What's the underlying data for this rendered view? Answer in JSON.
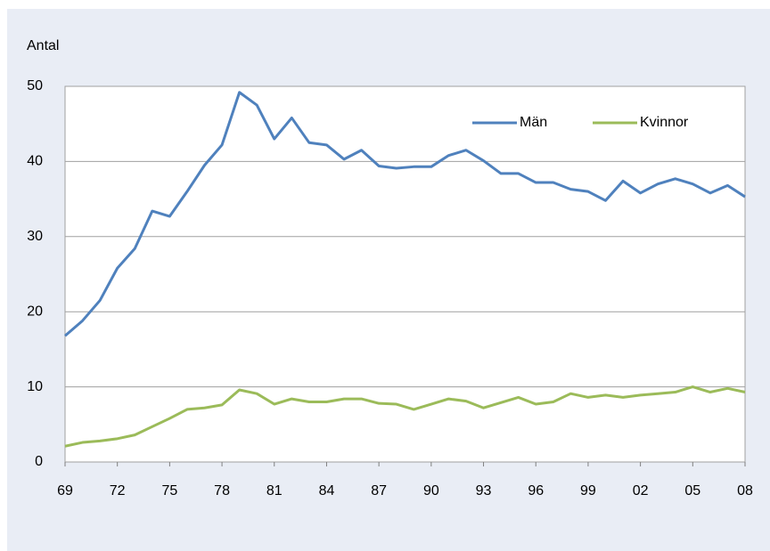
{
  "chart_data": {
    "type": "line",
    "y_label": "Antal",
    "categories": [
      "69",
      null,
      null,
      "72",
      null,
      null,
      "75",
      null,
      null,
      "78",
      null,
      null,
      "81",
      null,
      null,
      "84",
      null,
      null,
      "87",
      null,
      null,
      "90",
      null,
      null,
      "93",
      null,
      null,
      "96",
      null,
      null,
      "99",
      null,
      null,
      "02",
      null,
      null,
      "05",
      null,
      null,
      "08"
    ],
    "series": [
      {
        "name": "Män",
        "color": "#4f81bd",
        "values": [
          16.8,
          18.8,
          21.5,
          25.8,
          28.4,
          33.4,
          32.7,
          36.0,
          39.5,
          42.2,
          49.2,
          47.5,
          43.0,
          45.8,
          42.5,
          42.2,
          40.3,
          41.5,
          39.4,
          39.1,
          39.3,
          39.3,
          40.8,
          41.5,
          40.1,
          38.4,
          38.4,
          37.2,
          37.2,
          36.3,
          36.0,
          34.8,
          37.4,
          35.8,
          37.0,
          37.7,
          37.0,
          35.8,
          36.8,
          35.3
        ]
      },
      {
        "name": "Kvinnor",
        "color": "#9bbb59",
        "values": [
          2.1,
          2.6,
          2.8,
          3.1,
          3.6,
          4.7,
          5.8,
          7.0,
          7.2,
          7.6,
          9.6,
          9.1,
          7.7,
          8.4,
          8.0,
          8.0,
          8.4,
          8.4,
          7.8,
          7.7,
          7.0,
          7.7,
          8.4,
          8.1,
          7.2,
          7.9,
          8.6,
          7.7,
          8.0,
          9.1,
          8.6,
          8.9,
          8.6,
          8.9,
          9.1,
          9.3,
          10.0,
          9.3,
          9.8,
          9.3
        ]
      }
    ],
    "ylim": [
      0,
      50
    ],
    "yticks": [
      0,
      10,
      20,
      30,
      40,
      50
    ],
    "grid": true,
    "legend": "upper right"
  }
}
